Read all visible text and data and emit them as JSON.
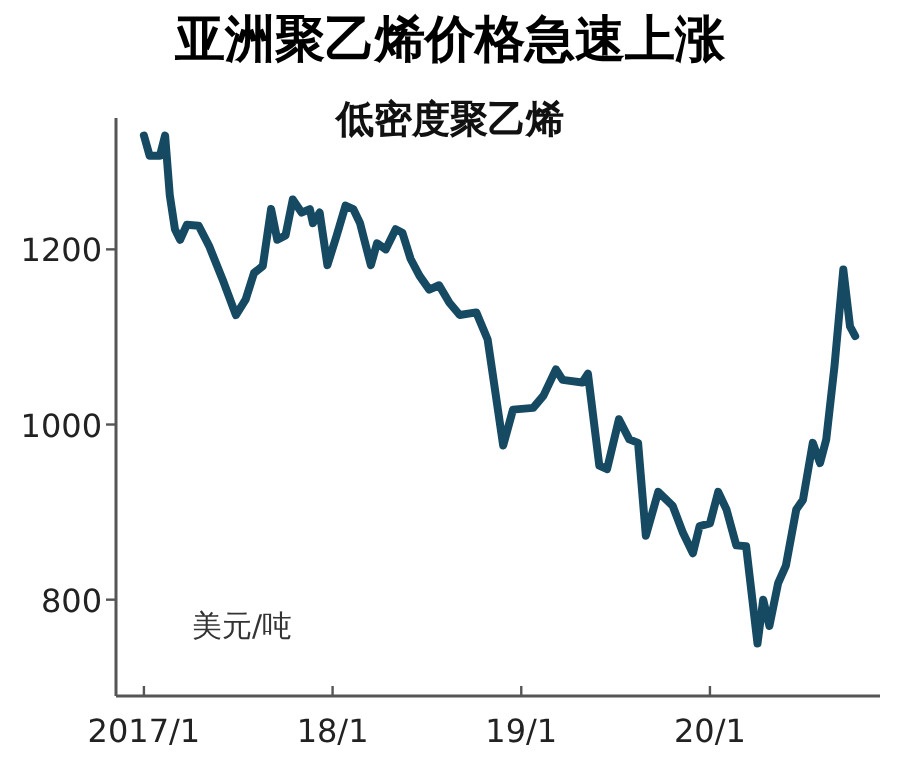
{
  "chart_data": {
    "type": "line",
    "title": "亚洲聚乙烯价格急速上涨",
    "subtitle": "低密度聚乙烯",
    "ylabel": "美元/吨",
    "xlim": [
      "2016-11-08",
      "2020-11-25"
    ],
    "ylim": [
      690,
      1350
    ],
    "xticks": [
      {
        "value": "2017-01-01",
        "label": "2017/1"
      },
      {
        "value": "2018-01-01",
        "label": "18/1"
      },
      {
        "value": "2019-01-01",
        "label": "19/1"
      },
      {
        "value": "2020-01-01",
        "label": "20/1"
      }
    ],
    "yticks": [
      800,
      1000,
      1200
    ],
    "grid": false,
    "marker": "none",
    "line_style": "solid",
    "series": [
      {
        "color": "#164a63",
        "x": [
          "2017-01-01",
          "2017-01-12",
          "2017-02-01",
          "2017-02-11",
          "2017-02-20",
          "2017-03-02",
          "2017-03-12",
          "2017-03-25",
          "2017-04-17",
          "2017-05-07",
          "2017-06-02",
          "2017-06-28",
          "2017-07-17",
          "2017-08-02",
          "2017-08-19",
          "2017-09-04",
          "2017-09-16",
          "2017-10-02",
          "2017-10-16",
          "2017-11-02",
          "2017-11-18",
          "2017-11-24",
          "2017-12-07",
          "2017-12-22",
          "2018-01-09",
          "2018-01-26",
          "2018-02-10",
          "2018-02-23",
          "2018-03-16",
          "2018-03-28",
          "2018-04-14",
          "2018-05-03",
          "2018-05-16",
          "2018-06-01",
          "2018-06-18",
          "2018-07-07",
          "2018-07-26",
          "2018-08-15",
          "2018-09-04",
          "2018-10-06",
          "2018-10-28",
          "2018-11-27",
          "2018-12-16",
          "2019-01-24",
          "2019-02-13",
          "2019-03-09",
          "2019-03-22",
          "2019-04-29",
          "2019-05-10",
          "2019-06-01",
          "2019-06-16",
          "2019-07-09",
          "2019-07-29",
          "2019-08-15",
          "2019-08-30",
          "2019-09-23",
          "2019-10-21",
          "2019-11-10",
          "2019-11-29",
          "2019-12-12",
          "2020-01-01",
          "2020-01-17",
          "2020-02-02",
          "2020-02-21",
          "2020-03-11",
          "2020-04-02",
          "2020-04-13",
          "2020-04-25",
          "2020-05-12",
          "2020-05-27",
          "2020-06-16",
          "2020-06-29",
          "2020-07-18",
          "2020-08-01",
          "2020-08-13",
          "2020-08-29",
          "2020-09-15",
          "2020-09-28",
          "2020-10-08"
        ],
        "values": [
          1330,
          1307,
          1307,
          1330,
          1262,
          1223,
          1211,
          1228,
          1227,
          1204,
          1166,
          1125,
          1143,
          1173,
          1181,
          1246,
          1211,
          1216,
          1257,
          1242,
          1246,
          1230,
          1242,
          1182,
          1216,
          1250,
          1246,
          1230,
          1182,
          1207,
          1200,
          1223,
          1219,
          1189,
          1170,
          1154,
          1159,
          1139,
          1125,
          1128,
          1097,
          976,
          1017,
          1019,
          1033,
          1063,
          1051,
          1048,
          1058,
          953,
          949,
          1006,
          983,
          979,
          873,
          923,
          907,
          876,
          853,
          884,
          887,
          923,
          903,
          862,
          861,
          750,
          800,
          770,
          819,
          839,
          903,
          914,
          979,
          956,
          983,
          1067,
          1177,
          1112,
          1101
        ]
      }
    ]
  }
}
